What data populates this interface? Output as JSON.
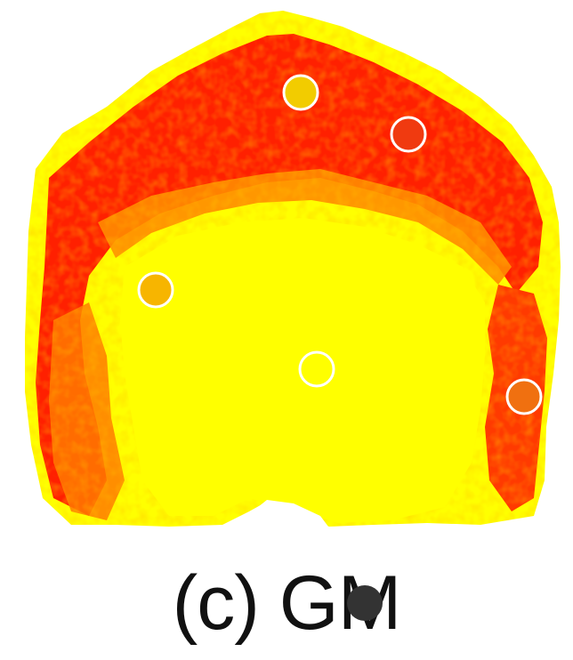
{
  "figure": {
    "caption": "(c) GM",
    "colors": {
      "background": "#ffffff",
      "high": "#ffff00",
      "mid": "#ffa500",
      "low": "#ff2200",
      "deep": "#e00000"
    },
    "markers": [
      {
        "name": "marker-top-center",
        "fill": "#f2cc00"
      },
      {
        "name": "marker-top-right",
        "fill": "#f03a10"
      },
      {
        "name": "marker-left",
        "fill": "#f7b500"
      },
      {
        "name": "marker-center",
        "fill": "#ffff00"
      },
      {
        "name": "marker-right",
        "fill": "#f07010"
      }
    ],
    "cursor_icon": "dot-cursor-icon"
  }
}
